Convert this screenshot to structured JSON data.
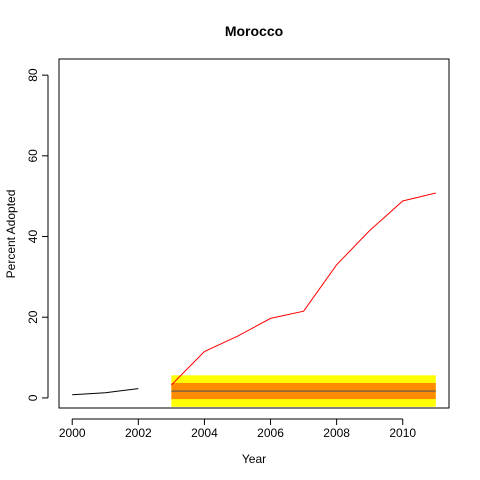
{
  "chart_data": {
    "type": "line",
    "title": "Morocco",
    "xlabel": "Year",
    "ylabel": "Percent Adopted",
    "xlim": [
      1999.6,
      2011.4
    ],
    "ylim": [
      -2.5,
      84
    ],
    "x_ticks": [
      2000,
      2002,
      2004,
      2006,
      2008,
      2010
    ],
    "y_ticks": [
      0,
      20,
      40,
      60,
      80
    ],
    "grid": false,
    "legend": "none",
    "series": [
      {
        "color": "#000000",
        "x": [
          2000,
          2001,
          2002
        ],
        "y": [
          0.8,
          1.3,
          2.3
        ]
      },
      {
        "color": "#ff0000",
        "x": [
          2003,
          2004,
          2005,
          2006,
          2007,
          2008,
          2009,
          2010,
          2011
        ],
        "y": [
          3.2,
          11.5,
          15.3,
          19.7,
          21.5,
          33.0,
          41.5,
          48.8,
          50.8
        ]
      }
    ],
    "bands": [
      {
        "color": "#ffff00",
        "x": [
          2003,
          2011
        ],
        "y": [
          -2.2,
          5.6
        ]
      },
      {
        "color": "#ff8c00",
        "x": [
          2003,
          2011
        ],
        "y": [
          -0.3,
          3.7
        ]
      }
    ],
    "reference_line": {
      "color": "#555555",
      "x": [
        2003,
        2011
      ],
      "y": 1.7
    }
  }
}
